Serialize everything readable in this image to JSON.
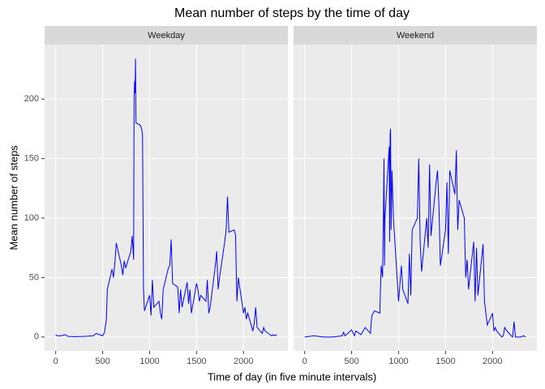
{
  "chart_data": {
    "type": "line",
    "title": "Mean number of steps by the time of day",
    "x_label": "Time of day (in five minute intervals)",
    "y_label": "Mean number of steps",
    "color": "blue",
    "grid": true,
    "xlim": [
      -118,
      2473
    ],
    "xticks": [
      0,
      500,
      1000,
      1500,
      2000
    ],
    "ylim": [
      -11.7,
      245.8
    ],
    "yticks": [
      0,
      50,
      100,
      150,
      200
    ],
    "facets": [
      {
        "name": "Weekday",
        "x": [
          0,
          15,
          30,
          55,
          100,
          130,
          200,
          300,
          400,
          430,
          500,
          520,
          540,
          550,
          600,
          615,
          630,
          645,
          700,
          715,
          730,
          745,
          800,
          815,
          830,
          835,
          840,
          845,
          850,
          855,
          900,
          915,
          925,
          930,
          935,
          945,
          1000,
          1015,
          1030,
          1045,
          1100,
          1115,
          1130,
          1145,
          1200,
          1215,
          1230,
          1245,
          1300,
          1315,
          1330,
          1345,
          1400,
          1415,
          1430,
          1445,
          1500,
          1515,
          1530,
          1545,
          1600,
          1615,
          1630,
          1645,
          1700,
          1715,
          1730,
          1745,
          1800,
          1815,
          1830,
          1845,
          1900,
          1915,
          1930,
          1945,
          2000,
          2015,
          2030,
          2045,
          2100,
          2115,
          2130,
          2145,
          2200,
          2215,
          2230,
          2300,
          2315,
          2330,
          2355
        ],
        "values": [
          2,
          1,
          1,
          1,
          2,
          0.5,
          0.3,
          0.5,
          1,
          3,
          1,
          4,
          15,
          40,
          57,
          50,
          62,
          79,
          60,
          52,
          64,
          58,
          72,
          85,
          65,
          200,
          215,
          205,
          234,
          180,
          178,
          175,
          170,
          100,
          40,
          22,
          35,
          18,
          48,
          25,
          30,
          20,
          15,
          40,
          58,
          60,
          82,
          45,
          42,
          20,
          40,
          25,
          46,
          28,
          40,
          20,
          45,
          40,
          30,
          35,
          30,
          48,
          20,
          25,
          60,
          72,
          40,
          50,
          80,
          90,
          118,
          88,
          90,
          86,
          30,
          50,
          20,
          25,
          15,
          20,
          5,
          12,
          25,
          8,
          3,
          8,
          5,
          1,
          2,
          1,
          2
        ]
      },
      {
        "name": "Weekend",
        "x": [
          0,
          100,
          200,
          300,
          400,
          415,
          430,
          500,
          530,
          545,
          600,
          630,
          645,
          700,
          715,
          730,
          745,
          800,
          815,
          830,
          835,
          840,
          845,
          850,
          855,
          900,
          905,
          910,
          915,
          920,
          930,
          945,
          1000,
          1015,
          1030,
          1045,
          1100,
          1115,
          1130,
          1145,
          1200,
          1215,
          1230,
          1245,
          1300,
          1315,
          1330,
          1345,
          1400,
          1415,
          1430,
          1445,
          1500,
          1515,
          1530,
          1545,
          1600,
          1615,
          1630,
          1645,
          1700,
          1715,
          1730,
          1745,
          1800,
          1815,
          1830,
          1845,
          1900,
          1915,
          1930,
          1945,
          2000,
          2015,
          2030,
          2045,
          2100,
          2115,
          2130,
          2145,
          2200,
          2215,
          2230,
          2245,
          2300,
          2330,
          2355
        ],
        "values": [
          0,
          1,
          0,
          0,
          1,
          4,
          1,
          6,
          1,
          5,
          2,
          6,
          8,
          3,
          18,
          20,
          22,
          20,
          60,
          50,
          85,
          110,
          150,
          60,
          100,
          160,
          80,
          170,
          175,
          90,
          140,
          100,
          30,
          45,
          60,
          40,
          28,
          70,
          35,
          90,
          100,
          150,
          80,
          55,
          100,
          75,
          145,
          85,
          130,
          140,
          110,
          60,
          90,
          130,
          70,
          140,
          120,
          157,
          90,
          115,
          100,
          50,
          65,
          40,
          80,
          30,
          75,
          35,
          78,
          30,
          20,
          10,
          20,
          5,
          8,
          5,
          0,
          1,
          8,
          6,
          1,
          0,
          13,
          0,
          0,
          1,
          0
        ]
      }
    ]
  }
}
